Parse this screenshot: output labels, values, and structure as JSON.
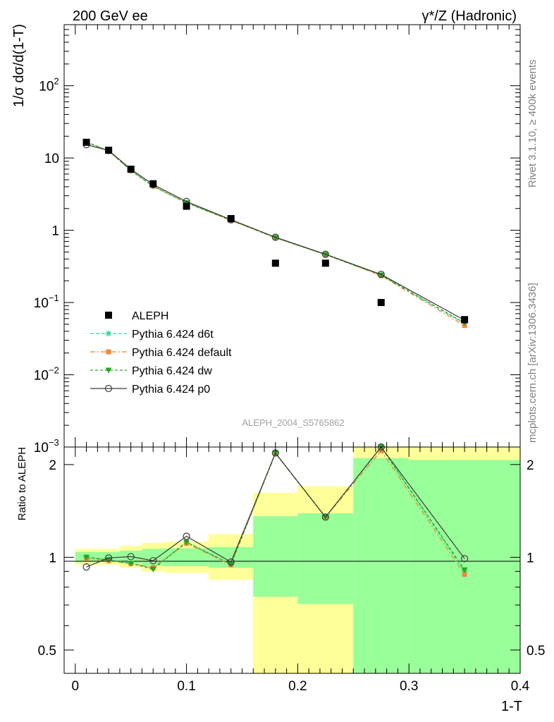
{
  "header": {
    "left": "200 GeV ee",
    "right": "γ*/Z (Hadronic)"
  },
  "side_notes": {
    "rivet": "Rivet 3.1.10, ≥ 400k events",
    "mcplots": "mcplots.cern.ch [arXiv:1306.3436]"
  },
  "analysis_label": "ALEPH_2004_S5765862",
  "colors": {
    "data": "#000000",
    "d6t": "#2fd39a",
    "default": "#f58634",
    "dw": "#1faa1f",
    "p0": "#3a3a3a",
    "band_outer": "#ffff99",
    "band_inner": "#99ff99"
  },
  "chart_data": [
    {
      "type": "line",
      "panel": "main",
      "ylabel": "1/σ dσ/d(1-T)",
      "yscale": "log",
      "ylim": [
        0.001,
        700
      ],
      "xlim": [
        -0.01,
        0.4
      ],
      "y_ticks": [
        {
          "value": 100,
          "label": "10",
          "sup": "2"
        },
        {
          "value": 10,
          "label": "10",
          "sup": ""
        },
        {
          "value": 1,
          "label": "1",
          "sup": ""
        },
        {
          "value": 0.1,
          "label": "10",
          "sup": "−1"
        },
        {
          "value": 0.01,
          "label": "10",
          "sup": "−2"
        },
        {
          "value": 0.001,
          "label": "10",
          "sup": "−3"
        }
      ],
      "legend_position": "bottom-left",
      "data": {
        "name": "ALEPH",
        "x": [
          0.01,
          0.03,
          0.05,
          0.07,
          0.1,
          0.14,
          0.18,
          0.225,
          0.275,
          0.35
        ],
        "y": [
          16.5,
          12.8,
          7.0,
          4.4,
          2.15,
          1.45,
          0.35,
          0.35,
          0.1,
          0.058
        ]
      },
      "series": [
        {
          "name": "Pythia 6.424 d6t",
          "key": "d6t",
          "marker": "star",
          "x": [
            0.01,
            0.03,
            0.05,
            0.07,
            0.1,
            0.14,
            0.18,
            0.225,
            0.275,
            0.35
          ],
          "y": [
            16.6,
            12.6,
            6.7,
            4.1,
            2.4,
            1.38,
            0.79,
            0.46,
            0.24,
            0.051
          ]
        },
        {
          "name": "Pythia 6.424 default",
          "key": "default",
          "marker": "square",
          "x": [
            0.01,
            0.03,
            0.05,
            0.07,
            0.1,
            0.14,
            0.18,
            0.225,
            0.275,
            0.35
          ],
          "y": [
            16.3,
            12.5,
            6.7,
            4.1,
            2.4,
            1.36,
            0.79,
            0.46,
            0.235,
            0.048
          ]
        },
        {
          "name": "Pythia 6.424 dw",
          "key": "dw",
          "marker": "triangle",
          "x": [
            0.01,
            0.03,
            0.05,
            0.07,
            0.1,
            0.14,
            0.18,
            0.225,
            0.275,
            0.35
          ],
          "y": [
            16.6,
            12.6,
            6.7,
            4.05,
            2.4,
            1.38,
            0.79,
            0.46,
            0.24,
            0.052
          ]
        },
        {
          "name": "Pythia 6.424 p0",
          "key": "p0",
          "marker": "circle",
          "x": [
            0.01,
            0.03,
            0.05,
            0.07,
            0.1,
            0.14,
            0.18,
            0.225,
            0.275,
            0.35
          ],
          "y": [
            15.3,
            12.7,
            7.0,
            4.3,
            2.5,
            1.4,
            0.8,
            0.465,
            0.245,
            0.057
          ]
        }
      ]
    },
    {
      "type": "line",
      "panel": "ratio",
      "ylabel": "Ratio to ALEPH",
      "xlabel": "1-T",
      "yscale": "log",
      "ylim": [
        0.42,
        2.28
      ],
      "xlim": [
        -0.01,
        0.4
      ],
      "x_ticks": [
        {
          "value": 0,
          "label": "0"
        },
        {
          "value": 0.1,
          "label": "0.1"
        },
        {
          "value": 0.2,
          "label": "0.2"
        },
        {
          "value": 0.3,
          "label": "0.3"
        },
        {
          "value": 0.4,
          "label": "0.4"
        }
      ],
      "y_ticks": [
        {
          "value": 0.5,
          "label": "0.5"
        },
        {
          "value": 1,
          "label": "1"
        },
        {
          "value": 2,
          "label": "2"
        }
      ],
      "bands": [
        {
          "x0": 0.0,
          "x1": 0.02,
          "outer": [
            0.945,
            1.065
          ],
          "inner": [
            0.965,
            1.04
          ]
        },
        {
          "x0": 0.02,
          "x1": 0.04,
          "outer": [
            0.945,
            1.065
          ],
          "inner": [
            0.965,
            1.04
          ]
        },
        {
          "x0": 0.04,
          "x1": 0.06,
          "outer": [
            0.925,
            1.09
          ],
          "inner": [
            0.955,
            1.05
          ]
        },
        {
          "x0": 0.06,
          "x1": 0.08,
          "outer": [
            0.9,
            1.115
          ],
          "inner": [
            0.94,
            1.065
          ]
        },
        {
          "x0": 0.08,
          "x1": 0.12,
          "outer": [
            0.89,
            1.125
          ],
          "inner": [
            0.935,
            1.07
          ]
        },
        {
          "x0": 0.12,
          "x1": 0.16,
          "outer": [
            0.845,
            1.19
          ],
          "inner": [
            0.925,
            1.08
          ]
        },
        {
          "x0": 0.16,
          "x1": 0.2,
          "outer": [
            0.37,
            1.62
          ],
          "inner": [
            0.745,
            1.36
          ]
        },
        {
          "x0": 0.2,
          "x1": 0.25,
          "outer": [
            0.35,
            1.7
          ],
          "inner": [
            0.705,
            1.39
          ]
        },
        {
          "x0": 0.25,
          "x1": 0.3,
          "outer": [
            0.35,
            2.28
          ],
          "inner": [
            0.35,
            2.1
          ]
        },
        {
          "x0": 0.3,
          "x1": 0.4,
          "outer": [
            0.35,
            2.28
          ],
          "inner": [
            0.35,
            2.07
          ]
        }
      ],
      "series": [
        {
          "name": "Pythia 6.424 d6t",
          "key": "d6t",
          "marker": "star",
          "x": [
            0.01,
            0.03,
            0.05,
            0.07,
            0.1,
            0.14,
            0.18,
            0.225,
            0.275,
            0.35
          ],
          "y": [
            1.0,
            0.985,
            0.955,
            0.925,
            1.12,
            0.95,
            2.18,
            1.35,
            2.28,
            0.9
          ]
        },
        {
          "name": "Pythia 6.424 default",
          "key": "default",
          "marker": "square",
          "x": [
            0.01,
            0.03,
            0.05,
            0.07,
            0.1,
            0.14,
            0.18,
            0.225,
            0.275,
            0.35
          ],
          "y": [
            0.99,
            0.975,
            0.955,
            0.925,
            1.11,
            0.945,
            2.17,
            1.35,
            2.22,
            0.88
          ]
        },
        {
          "name": "Pythia 6.424 dw",
          "key": "dw",
          "marker": "triangle",
          "x": [
            0.01,
            0.03,
            0.05,
            0.07,
            0.1,
            0.14,
            0.18,
            0.225,
            0.275,
            0.35
          ],
          "y": [
            1.0,
            0.98,
            0.955,
            0.915,
            1.12,
            0.95,
            2.18,
            1.35,
            2.28,
            0.91
          ]
        },
        {
          "name": "Pythia 6.424 p0",
          "key": "p0",
          "marker": "circle",
          "x": [
            0.01,
            0.03,
            0.05,
            0.07,
            0.1,
            0.14,
            0.18,
            0.225,
            0.275,
            0.35
          ],
          "y": [
            0.93,
            0.995,
            1.005,
            0.975,
            1.17,
            0.965,
            2.18,
            1.35,
            2.28,
            0.99
          ]
        }
      ]
    }
  ]
}
